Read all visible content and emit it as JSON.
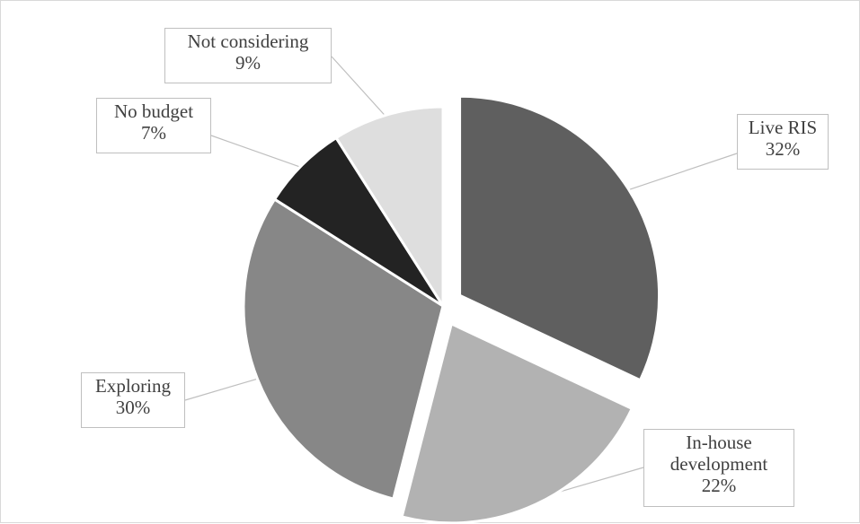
{
  "chart_data": {
    "type": "pie",
    "title": "",
    "slices": [
      {
        "label": "Live RIS",
        "value": 32,
        "value_label": "32%",
        "color": "#5f5f5f",
        "exploded": true
      },
      {
        "label": "In-house development",
        "label_lines": [
          "In-house",
          "development"
        ],
        "value": 22,
        "value_label": "22%",
        "color": "#b2b2b2",
        "exploded": true
      },
      {
        "label": "Exploring",
        "value": 30,
        "value_label": "30%",
        "color": "#878787",
        "exploded": false
      },
      {
        "label": "No budget",
        "value": 7,
        "value_label": "7%",
        "color": "#232323",
        "exploded": false
      },
      {
        "label": "Not considering",
        "value": 9,
        "value_label": "9%",
        "color": "#dedede",
        "exploded": false
      }
    ],
    "legend": "none",
    "data_labels": "callouts"
  }
}
